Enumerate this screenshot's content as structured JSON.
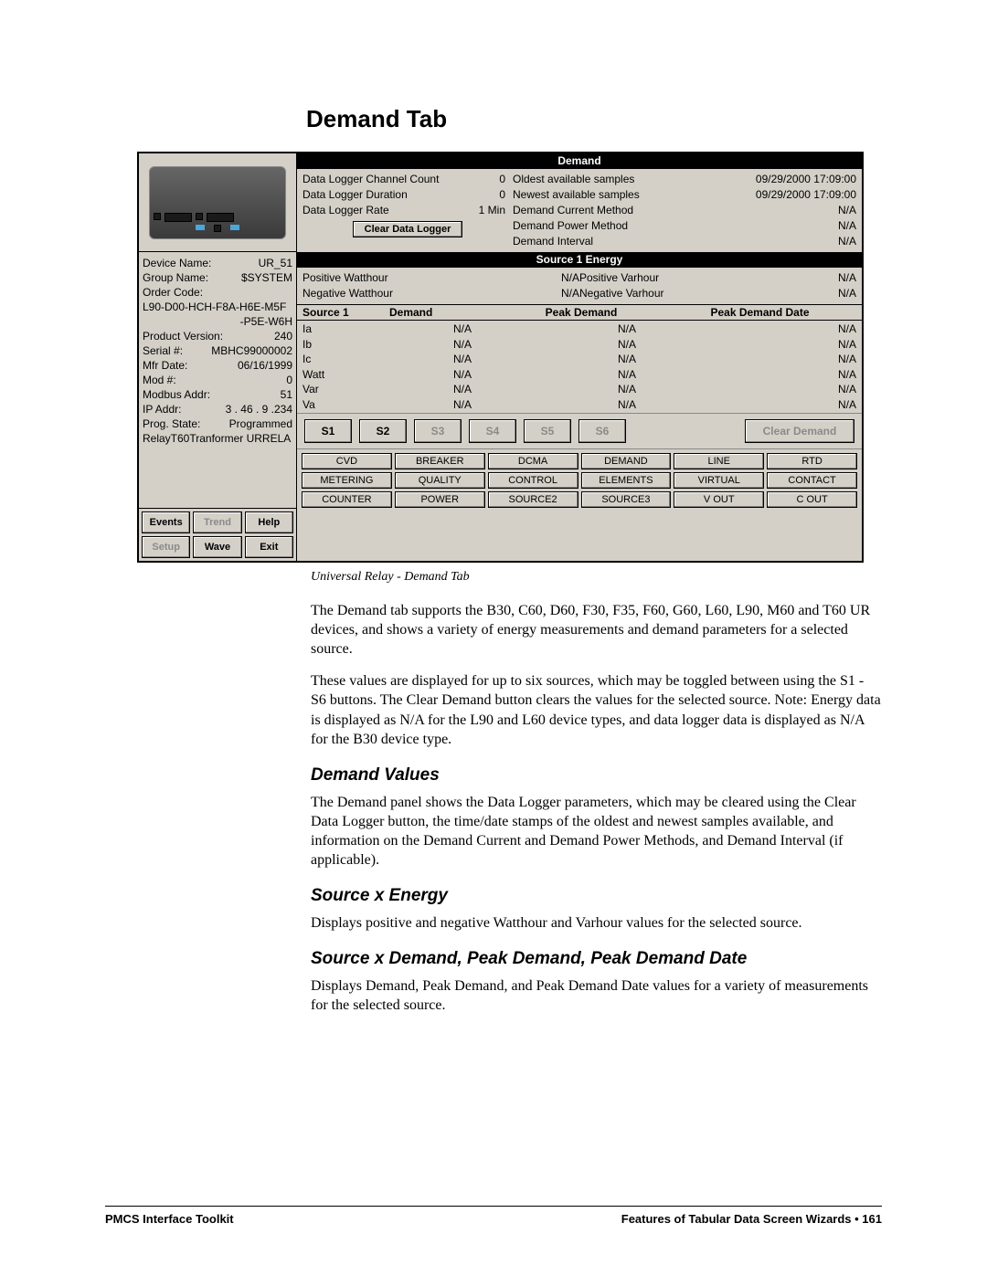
{
  "title": "Demand Tab",
  "caption": "Universal Relay - Demand Tab",
  "screenshot": {
    "info": [
      {
        "label": "Device Name:",
        "value": "UR_51"
      },
      {
        "label": "Group Name:",
        "value": "$SYSTEM"
      },
      {
        "label": "Order Code:",
        "value": ""
      },
      {
        "label": "L90-D00-HCH-F8A-H6E-M5F",
        "value": ""
      },
      {
        "label": "",
        "value": "-P5E-W6H"
      },
      {
        "label": "Product Version:",
        "value": "240"
      },
      {
        "label": "Serial #:",
        "value": "MBHC99000002"
      },
      {
        "label": "Mfr Date:",
        "value": "06/16/1999"
      },
      {
        "label": "Mod #:",
        "value": "0"
      },
      {
        "label": "Modbus Addr:",
        "value": "51"
      },
      {
        "label": "IP Addr:",
        "value": "3 . 46 . 9 .234"
      },
      {
        "label": "Prog. State:",
        "value": "Programmed"
      },
      {
        "label": "RelayT60Tranformer URRELA",
        "value": ""
      }
    ],
    "action_buttons": [
      {
        "label": "Events",
        "disabled": false
      },
      {
        "label": "Trend",
        "disabled": true
      },
      {
        "label": "Help",
        "disabled": false
      },
      {
        "label": "Setup",
        "disabled": true
      },
      {
        "label": "Wave",
        "disabled": false
      },
      {
        "label": "Exit",
        "disabled": false
      }
    ],
    "demand_header": "Demand",
    "logger_rows": [
      {
        "l": "Data Logger Channel Count",
        "v": "0",
        "l2": "Oldest available samples",
        "v2": "09/29/2000 17:09:00"
      },
      {
        "l": "Data Logger Duration",
        "v": "0",
        "l2": "Newest available samples",
        "v2": "09/29/2000 17:09:00"
      },
      {
        "l": "Data Logger Rate",
        "v": "1 Min",
        "l2": "Demand Current Method",
        "v2": "N/A"
      }
    ],
    "logger_extra": [
      {
        "l2": "Demand Power Method",
        "v2": "N/A"
      },
      {
        "l2": "Demand Interval",
        "v2": "N/A"
      }
    ],
    "clear_logger_label": "Clear Data Logger",
    "energy_header": "Source 1 Energy",
    "energy_rows": [
      {
        "l": "Positive Watthour",
        "v": "N/A",
        "l2": "Positive Varhour",
        "v2": "N/A"
      },
      {
        "l": "Negative Watthour",
        "v": "N/A",
        "l2": "Negative Varhour",
        "v2": "N/A"
      }
    ],
    "dtable_headers": [
      "Source 1",
      "Demand",
      "Peak Demand",
      "Peak Demand Date"
    ],
    "dtable_rows": [
      {
        "n": "Ia",
        "d": "N/A",
        "p": "N/A",
        "pd": "N/A"
      },
      {
        "n": "Ib",
        "d": "N/A",
        "p": "N/A",
        "pd": "N/A"
      },
      {
        "n": "Ic",
        "d": "N/A",
        "p": "N/A",
        "pd": "N/A"
      },
      {
        "n": "Watt",
        "d": "N/A",
        "p": "N/A",
        "pd": "N/A"
      },
      {
        "n": "Var",
        "d": "N/A",
        "p": "N/A",
        "pd": "N/A"
      },
      {
        "n": "Va",
        "d": "N/A",
        "p": "N/A",
        "pd": "N/A"
      }
    ],
    "source_buttons": [
      {
        "label": "S1",
        "disabled": false
      },
      {
        "label": "S2",
        "disabled": false
      },
      {
        "label": "S3",
        "disabled": true
      },
      {
        "label": "S4",
        "disabled": true
      },
      {
        "label": "S5",
        "disabled": true
      },
      {
        "label": "S6",
        "disabled": true
      }
    ],
    "clear_demand_label": "Clear Demand",
    "tabs": [
      "CVD",
      "BREAKER",
      "DCMA",
      "DEMAND",
      "LINE",
      "RTD",
      "METERING",
      "QUALITY",
      "CONTROL",
      "ELEMENTS",
      "VIRTUAL",
      "CONTACT",
      "COUNTER",
      "POWER",
      "SOURCE2",
      "SOURCE3",
      "V OUT",
      "C OUT"
    ]
  },
  "body": {
    "p1": "The Demand tab supports the B30, C60, D60, F30, F35, F60, G60, L60, L90, M60 and T60 UR devices, and shows a variety of energy measurements and demand parameters for a selected source.",
    "p2": "These values are displayed for up to six sources, which may be toggled between using the S1 - S6 buttons. The Clear Demand button clears the values for the selected source. Note: Energy data is displayed as N/A for the L90 and L60 device types, and data logger data is displayed as N/A for the B30 device type.",
    "h_dv": "Demand Values",
    "p_dv": "The Demand panel shows the Data Logger parameters, which may be cleared using the Clear Data Logger button, the time/date stamps of the oldest and newest samples available, and information on the Demand Current and Demand Power Methods, and Demand Interval (if applicable).",
    "h_se": "Source x Energy",
    "p_se": "Displays positive and negative Watthour and Varhour values for the selected source.",
    "h_sd": "Source x Demand, Peak Demand, Peak Demand Date",
    "p_sd": "Displays Demand, Peak Demand, and Peak Demand Date values for a variety of measurements for the selected source."
  },
  "footer": {
    "left": "PMCS Interface Toolkit",
    "right": "Features of Tabular Data Screen Wizards  •  161"
  }
}
